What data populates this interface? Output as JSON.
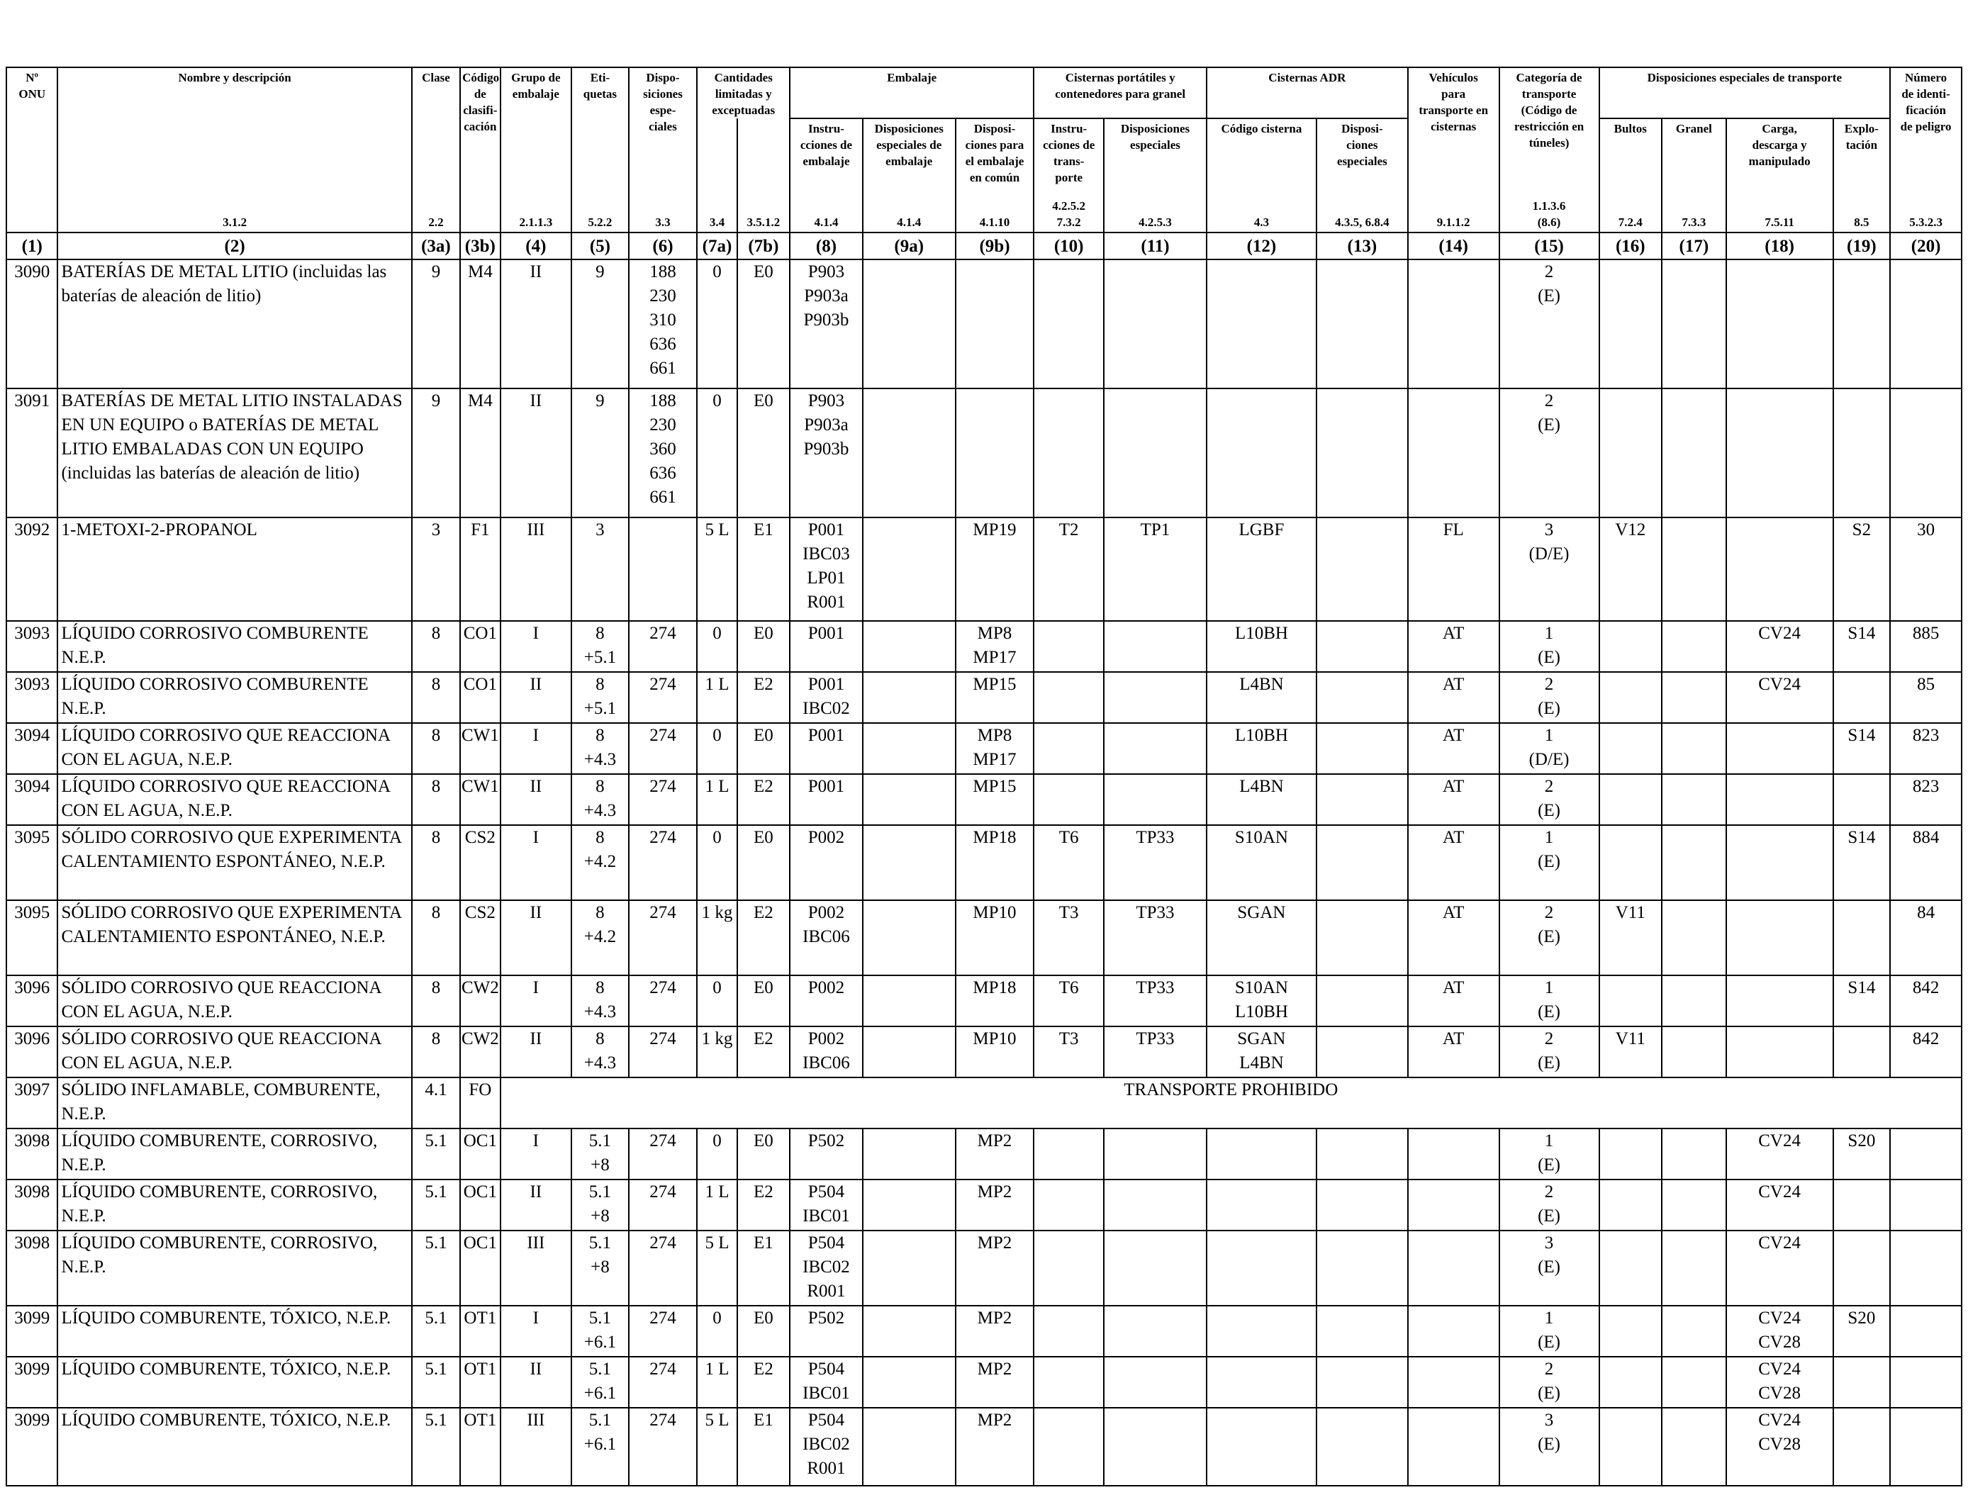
{
  "header": {
    "onu": "Nº\nONU",
    "name": "Nombre y descripción",
    "name_ref": "3.1.2",
    "clase": "Clase",
    "clase_ref": "2.2",
    "codigo": "Código\nde clasifi-\ncación",
    "grupo": "Grupo de\nembalaje",
    "grupo_ref": "2.1.1.3",
    "etiquetas": "Eti-\nquetas",
    "etiquetas_ref": "5.2.2",
    "disposiciones": "Dispo-\nsiciones\nespe-\nciales",
    "disposiciones_ref": "3.3",
    "cantidades": "Cantidades\nlimitadas y\nexceptuadas",
    "cant_ref_a": "3.4",
    "cant_ref_b": "3.5.1.2",
    "embalaje": "Embalaje",
    "emb_instr": "Instru-\ncciones de\nembalaje",
    "emb_instr_ref": "4.1.4",
    "emb_disp": "Disposiciones\nespeciales de\nembalaje",
    "emb_disp_ref": "4.1.4",
    "emb_comun": "Disposi-\nciones para\nel embalaje\nen común",
    "emb_comun_ref": "4.1.10",
    "cisternas_port": "Cisternas portátiles y\ncontenedores para granel",
    "cp_instr": "Instru-\ncciones de\ntrans-\nporte",
    "cp_instr_ref": "4.2.5.2\n7.3.2",
    "cp_disp": "Disposiciones\nespeciales",
    "cp_disp_ref": "4.2.5.3",
    "cisternas_adr": "Cisternas ADR",
    "adr_codigo": "Código cisterna",
    "adr_codigo_ref": "4.3",
    "adr_disp": "Disposi-\nciones\nespeciales",
    "adr_disp_ref": "4.3.5, 6.8.4",
    "vehiculos": "Vehículos\npara\ntransporte en\ncisternas",
    "vehiculos_ref": "9.1.1.2",
    "categoria": "Categoría de\ntransporte\n(Código de\nrestricción en\ntúneles)",
    "categoria_ref": "1.1.3.6\n(8.6)",
    "disp_transporte": "Disposiciones especiales de transporte",
    "dt_bultos": "Bultos",
    "dt_bultos_ref": "7.2.4",
    "dt_granel": "Granel",
    "dt_granel_ref": "7.3.3",
    "dt_carga": "Carga,\ndescarga y\nmanipulado",
    "dt_carga_ref": "7.5.11",
    "dt_explotacion": "Explo-\ntación",
    "dt_explotacion_ref": "8.5",
    "numero": "Número\nde identi-\nficación\nde peligro",
    "numero_ref": "5.3.2.3"
  },
  "column_numbers": [
    "(1)",
    "(2)",
    "(3a)",
    "(3b)",
    "(4)",
    "(5)",
    "(6)",
    "(7a)",
    "(7b)",
    "(8)",
    "(9a)",
    "(9b)",
    "(10)",
    "(11)",
    "(12)",
    "(13)",
    "(14)",
    "(15)",
    "(16)",
    "(17)",
    "(18)",
    "(19)",
    "(20)"
  ],
  "rows": [
    [
      "3090",
      "BATERÍAS DE METAL LITIO (incluidas las baterías de aleación de litio)",
      "9",
      "M4",
      "II",
      "9",
      "188\n230\n310\n636\n661",
      "0",
      "E0",
      "P903\nP903a\nP903b",
      "",
      "",
      "",
      "",
      "",
      "",
      "",
      "2\n(E)",
      "",
      "",
      "",
      "",
      ""
    ],
    [
      "3091",
      "BATERÍAS DE METAL LITIO INSTALADAS EN UN EQUIPO o BATERÍAS DE METAL LITIO EMBALADAS CON UN EQUIPO (incluidas las baterías de aleación de litio)",
      "9",
      "M4",
      "II",
      "9",
      "188\n230\n360\n636\n661",
      "0",
      "E0",
      "P903\nP903a\nP903b",
      "",
      "",
      "",
      "",
      "",
      "",
      "",
      "2\n(E)",
      "",
      "",
      "",
      "",
      ""
    ],
    [
      "3092",
      "1-METOXI-2-PROPANOL",
      "3",
      "F1",
      "III",
      "3",
      "",
      "5 L",
      "E1",
      "P001\nIBC03\nLP01\nR001",
      "",
      "MP19",
      "T2",
      "TP1",
      "LGBF",
      "",
      "FL",
      "3\n(D/E)",
      "V12",
      "",
      "",
      "S2",
      "30"
    ],
    [
      "3093",
      "LÍQUIDO CORROSIVO COMBURENTE N.E.P.",
      "8",
      "CO1",
      "I",
      "8\n+5.1",
      "274",
      "0",
      "E0",
      "P001",
      "",
      "MP8\nMP17",
      "",
      "",
      "L10BH",
      "",
      "AT",
      "1\n(E)",
      "",
      "",
      "CV24",
      "S14",
      "885"
    ],
    [
      "3093",
      "LÍQUIDO CORROSIVO COMBURENTE N.E.P.",
      "8",
      "CO1",
      "II",
      "8\n+5.1",
      "274",
      "1 L",
      "E2",
      "P001\nIBC02",
      "",
      "MP15",
      "",
      "",
      "L4BN",
      "",
      "AT",
      "2\n(E)",
      "",
      "",
      "CV24",
      "",
      "85"
    ],
    [
      "3094",
      "LÍQUIDO CORROSIVO QUE REACCIONA CON EL AGUA, N.E.P.",
      "8",
      "CW1",
      "I",
      "8\n+4.3",
      "274",
      "0",
      "E0",
      "P001",
      "",
      "MP8\nMP17",
      "",
      "",
      "L10BH",
      "",
      "AT",
      "1\n(D/E)",
      "",
      "",
      "",
      "S14",
      "823"
    ],
    [
      "3094",
      "LÍQUIDO CORROSIVO QUE REACCIONA CON EL AGUA, N.E.P.",
      "8",
      "CW1",
      "II",
      "8\n+4.3",
      "274",
      "1 L",
      "E2",
      "P001",
      "",
      "MP15",
      "",
      "",
      "L4BN",
      "",
      "AT",
      "2\n(E)",
      "",
      "",
      "",
      "",
      "823"
    ],
    [
      "3095",
      "SÓLIDO CORROSIVO QUE EXPERIMENTA CALENTAMIENTO ESPONTÁNEO, N.E.P.",
      "8",
      "CS2",
      "I",
      "8\n+4.2",
      "274",
      "0",
      "E0",
      "P002",
      "",
      "MP18",
      "T6",
      "TP33",
      "S10AN",
      "",
      "AT",
      "1\n(E)",
      "",
      "",
      "",
      "S14",
      "884"
    ],
    [
      "3095",
      "SÓLIDO CORROSIVO QUE EXPERIMENTA CALENTAMIENTO ESPONTÁNEO, N.E.P.",
      "8",
      "CS2",
      "II",
      "8\n+4.2",
      "274",
      "1 kg",
      "E2",
      "P002\nIBC06",
      "",
      "MP10",
      "T3",
      "TP33",
      "SGAN",
      "",
      "AT",
      "2\n(E)",
      "V11",
      "",
      "",
      "",
      "84"
    ],
    [
      "3096",
      "SÓLIDO CORROSIVO QUE REACCIONA CON EL AGUA, N.E.P.",
      "8",
      "CW2",
      "I",
      "8\n+4.3",
      "274",
      "0",
      "E0",
      "P002",
      "",
      "MP18",
      "T6",
      "TP33",
      "S10AN\nL10BH",
      "",
      "AT",
      "1\n(E)",
      "",
      "",
      "",
      "S14",
      "842"
    ],
    [
      "3096",
      "SÓLIDO CORROSIVO QUE REACCIONA CON EL AGUA, N.E.P.",
      "8",
      "CW2",
      "II",
      "8\n+4.3",
      "274",
      "1 kg",
      "E2",
      "P002\nIBC06",
      "",
      "MP10",
      "T3",
      "TP33",
      "SGAN\nL4BN",
      "",
      "AT",
      "2\n(E)",
      "V11",
      "",
      "",
      "",
      "842"
    ],
    [
      "3097",
      "SÓLIDO INFLAMABLE, COMBURENTE, N.E.P.",
      "4.1",
      "FO",
      "TRANSPORTE PROHIBIDO"
    ],
    [
      "3098",
      "LÍQUIDO COMBURENTE, CORROSIVO, N.E.P.",
      "5.1",
      "OC1",
      "I",
      "5.1\n+8",
      "274",
      "0",
      "E0",
      "P502",
      "",
      "MP2",
      "",
      "",
      "",
      "",
      "",
      "1\n(E)",
      "",
      "",
      "CV24",
      "S20",
      ""
    ],
    [
      "3098",
      "LÍQUIDO COMBURENTE, CORROSIVO, N.E.P.",
      "5.1",
      "OC1",
      "II",
      "5.1\n+8",
      "274",
      "1 L",
      "E2",
      "P504\nIBC01",
      "",
      "MP2",
      "",
      "",
      "",
      "",
      "",
      "2\n(E)",
      "",
      "",
      "CV24",
      "",
      ""
    ],
    [
      "3098",
      "LÍQUIDO COMBURENTE, CORROSIVO, N.E.P.",
      "5.1",
      "OC1",
      "III",
      "5.1\n+8",
      "274",
      "5 L",
      "E1",
      "P504\nIBC02\nR001",
      "",
      "MP2",
      "",
      "",
      "",
      "",
      "",
      "3\n(E)",
      "",
      "",
      "CV24",
      "",
      ""
    ],
    [
      "3099",
      "LÍQUIDO COMBURENTE, TÓXICO, N.E.P.",
      "5.1",
      "OT1",
      "I",
      "5.1\n+6.1",
      "274",
      "0",
      "E0",
      "P502",
      "",
      "MP2",
      "",
      "",
      "",
      "",
      "",
      "1\n(E)",
      "",
      "",
      "CV24\nCV28",
      "S20",
      ""
    ],
    [
      "3099",
      "LÍQUIDO COMBURENTE, TÓXICO, N.E.P.",
      "5.1",
      "OT1",
      "II",
      "5.1\n+6.1",
      "274",
      "1 L",
      "E2",
      "P504\nIBC01",
      "",
      "MP2",
      "",
      "",
      "",
      "",
      "",
      "2\n(E)",
      "",
      "",
      "CV24\nCV28",
      "",
      ""
    ],
    [
      "3099",
      "LÍQUIDO COMBURENTE, TÓXICO, N.E.P.",
      "5.1",
      "OT1",
      "III",
      "5.1\n+6.1",
      "274",
      "5 L",
      "E1",
      "P504\nIBC02\nR001",
      "",
      "MP2",
      "",
      "",
      "",
      "",
      "",
      "3\n(E)",
      "",
      "",
      "CV24\nCV28",
      "",
      ""
    ]
  ]
}
